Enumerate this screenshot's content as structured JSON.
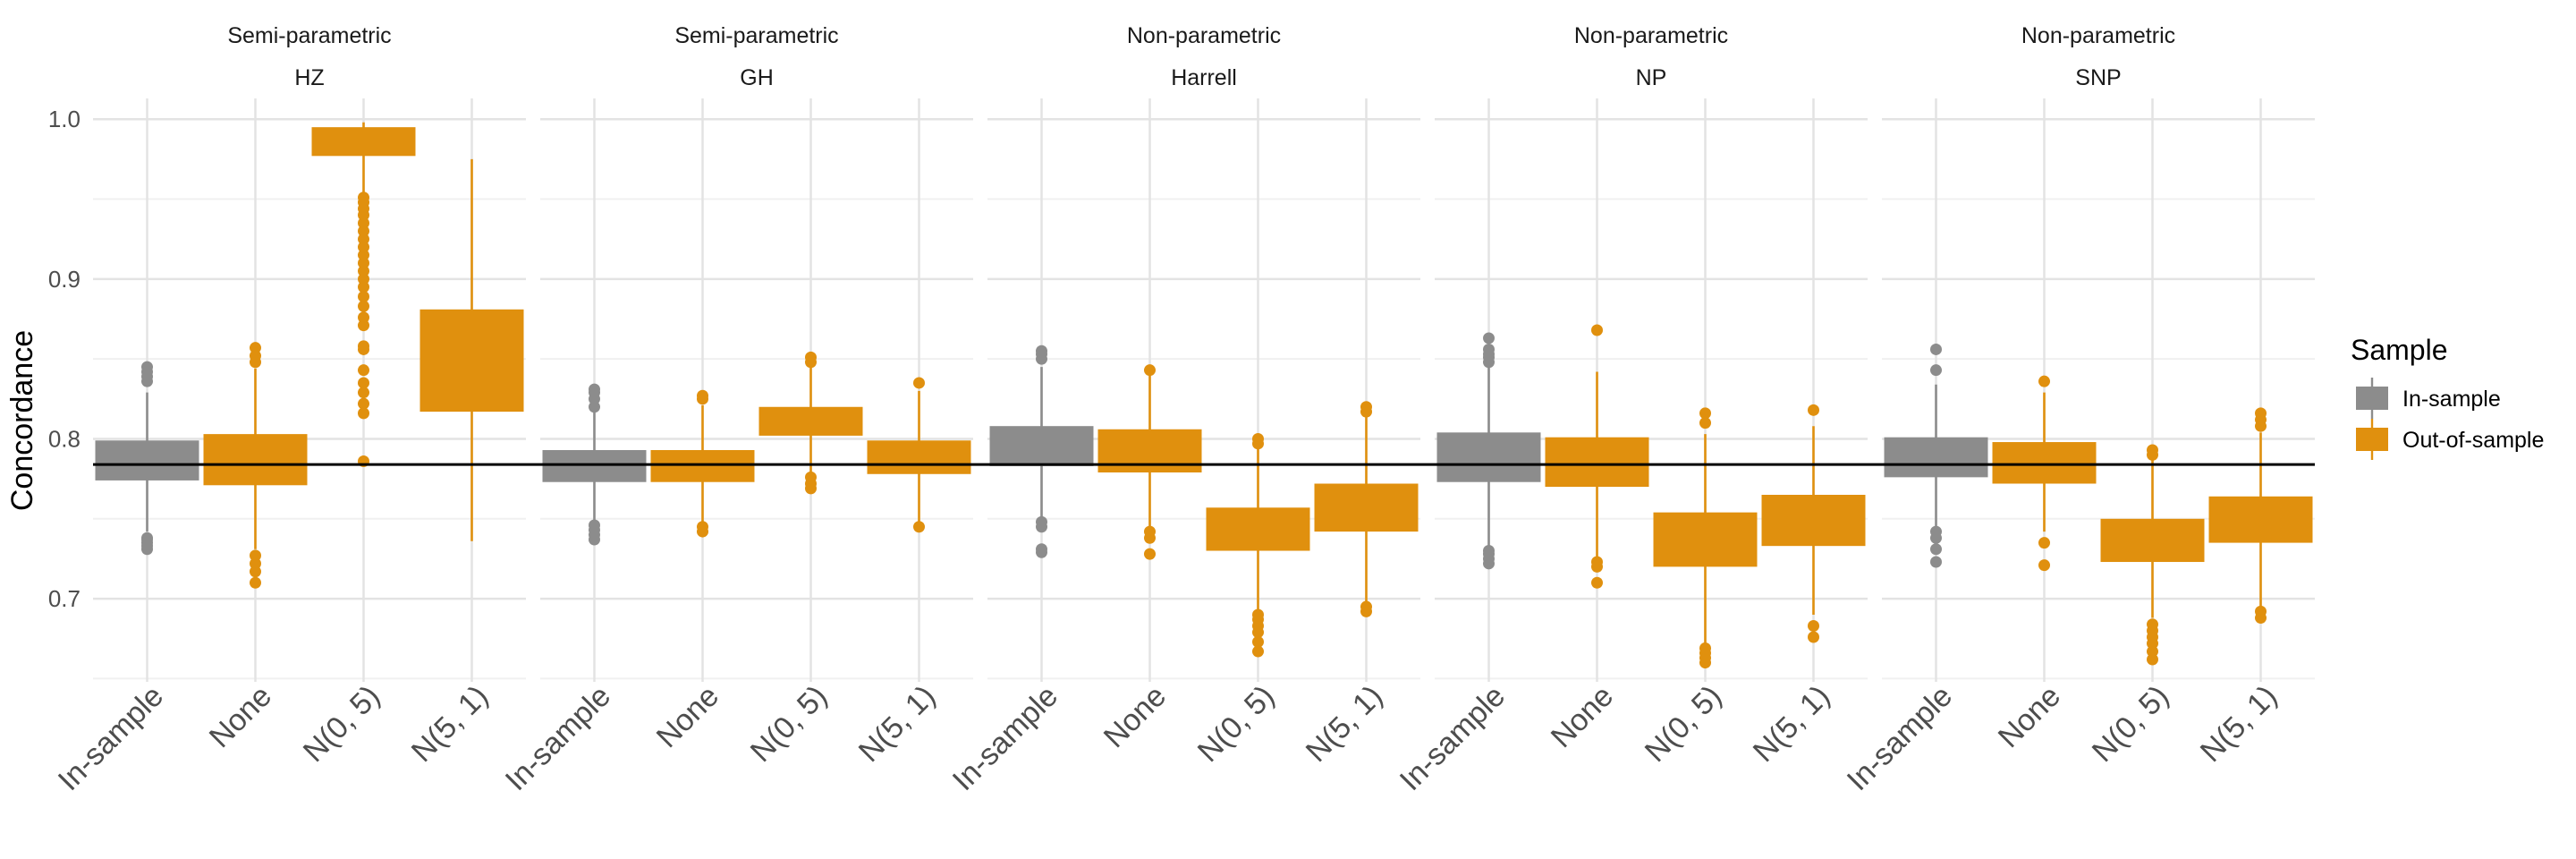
{
  "chart_data": {
    "type": "boxplot",
    "facet_groups": [
      "Semi-parametric",
      "Semi-parametric",
      "Non-parametric",
      "Non-parametric",
      "Non-parametric"
    ],
    "facets": [
      "HZ",
      "GH",
      "Harrell",
      "NP",
      "SNP"
    ],
    "categories": [
      "In-sample",
      "None",
      "N(0, 5)",
      "N(5, 1)"
    ],
    "ylabel": "Concordance",
    "yticks": [
      0.7,
      0.8,
      0.9,
      1.0
    ],
    "ytick_labels": [
      "0.7",
      "0.8",
      "0.9",
      "1.0"
    ],
    "ylim": [
      0.648,
      1.013
    ],
    "reference_line": 0.784,
    "legend": {
      "title": "Sample",
      "position": "right",
      "entries": [
        {
          "label": "In-sample",
          "color": "#8c8c8c"
        },
        {
          "label": "Out-of-sample",
          "color": "#e0900e"
        }
      ]
    },
    "grid": true,
    "panels": [
      {
        "facet": "HZ",
        "boxes": [
          {
            "category": "In-sample",
            "sample": "In-sample",
            "whisker_low": 0.742,
            "q1": 0.774,
            "median": 0.784,
            "q3": 0.799,
            "whisker_high": 0.829,
            "outliers": [
              0.731,
              0.733,
              0.735,
              0.737,
              0.738,
              0.836,
              0.839,
              0.842,
              0.845
            ]
          },
          {
            "category": "None",
            "sample": "Out-of-sample",
            "whisker_low": 0.731,
            "q1": 0.771,
            "median": 0.785,
            "q3": 0.803,
            "whisker_high": 0.844,
            "outliers": [
              0.71,
              0.717,
              0.722,
              0.727,
              0.848,
              0.852,
              0.857
            ]
          },
          {
            "category": "N(0, 5)",
            "sample": "Out-of-sample",
            "whisker_low": 0.952,
            "q1": 0.977,
            "median": 0.984,
            "q3": 0.995,
            "whisker_high": 0.998,
            "outliers": [
              0.786,
              0.816,
              0.822,
              0.829,
              0.835,
              0.843,
              0.856,
              0.858,
              0.871,
              0.876,
              0.883,
              0.889,
              0.895,
              0.9,
              0.905,
              0.91,
              0.915,
              0.92,
              0.925,
              0.93,
              0.935,
              0.94,
              0.944,
              0.948,
              0.951
            ]
          },
          {
            "category": "N(5, 1)",
            "sample": "Out-of-sample",
            "whisker_low": 0.736,
            "q1": 0.817,
            "median": 0.838,
            "q3": 0.881,
            "whisker_high": 0.975,
            "outliers": []
          }
        ]
      },
      {
        "facet": "GH",
        "boxes": [
          {
            "category": "In-sample",
            "sample": "In-sample",
            "whisker_low": 0.748,
            "q1": 0.773,
            "median": 0.783,
            "q3": 0.793,
            "whisker_high": 0.817,
            "outliers": [
              0.737,
              0.74,
              0.743,
              0.746,
              0.82,
              0.825,
              0.829,
              0.831
            ]
          },
          {
            "category": "None",
            "sample": "Out-of-sample",
            "whisker_low": 0.747,
            "q1": 0.773,
            "median": 0.784,
            "q3": 0.793,
            "whisker_high": 0.821,
            "outliers": [
              0.742,
              0.745,
              0.825,
              0.827
            ]
          },
          {
            "category": "N(0, 5)",
            "sample": "Out-of-sample",
            "whisker_low": 0.778,
            "q1": 0.802,
            "median": 0.808,
            "q3": 0.82,
            "whisker_high": 0.845,
            "outliers": [
              0.769,
              0.772,
              0.776,
              0.848,
              0.851
            ]
          },
          {
            "category": "N(5, 1)",
            "sample": "Out-of-sample",
            "whisker_low": 0.745,
            "q1": 0.778,
            "median": 0.783,
            "q3": 0.799,
            "whisker_high": 0.83,
            "outliers": [
              0.745,
              0.835
            ]
          }
        ]
      },
      {
        "facet": "Harrell",
        "boxes": [
          {
            "category": "In-sample",
            "sample": "In-sample",
            "whisker_low": 0.748,
            "q1": 0.783,
            "median": 0.784,
            "q3": 0.808,
            "whisker_high": 0.845,
            "outliers": [
              0.729,
              0.731,
              0.745,
              0.748,
              0.85,
              0.853,
              0.855
            ]
          },
          {
            "category": "None",
            "sample": "Out-of-sample",
            "whisker_low": 0.743,
            "q1": 0.779,
            "median": 0.79,
            "q3": 0.806,
            "whisker_high": 0.843,
            "outliers": [
              0.728,
              0.738,
              0.742,
              0.843
            ]
          },
          {
            "category": "N(0, 5)",
            "sample": "Out-of-sample",
            "whisker_low": 0.692,
            "q1": 0.73,
            "median": 0.741,
            "q3": 0.757,
            "whisker_high": 0.795,
            "outliers": [
              0.667,
              0.673,
              0.679,
              0.683,
              0.687,
              0.69,
              0.797,
              0.8
            ]
          },
          {
            "category": "N(5, 1)",
            "sample": "Out-of-sample",
            "whisker_low": 0.697,
            "q1": 0.742,
            "median": 0.755,
            "q3": 0.772,
            "whisker_high": 0.815,
            "outliers": [
              0.692,
              0.695,
              0.817,
              0.82
            ]
          }
        ]
      },
      {
        "facet": "NP",
        "boxes": [
          {
            "category": "In-sample",
            "sample": "In-sample",
            "whisker_low": 0.73,
            "q1": 0.773,
            "median": 0.786,
            "q3": 0.804,
            "whisker_high": 0.845,
            "outliers": [
              0.722,
              0.725,
              0.728,
              0.73,
              0.848,
              0.851,
              0.853,
              0.856,
              0.863
            ]
          },
          {
            "category": "None",
            "sample": "Out-of-sample",
            "whisker_low": 0.726,
            "q1": 0.77,
            "median": 0.785,
            "q3": 0.801,
            "whisker_high": 0.842,
            "outliers": [
              0.71,
              0.72,
              0.723,
              0.868
            ]
          },
          {
            "category": "N(0, 5)",
            "sample": "Out-of-sample",
            "whisker_low": 0.672,
            "q1": 0.72,
            "median": 0.73,
            "q3": 0.754,
            "whisker_high": 0.803,
            "outliers": [
              0.66,
              0.663,
              0.666,
              0.669,
              0.81,
              0.816
            ]
          },
          {
            "category": "N(5, 1)",
            "sample": "Out-of-sample",
            "whisker_low": 0.69,
            "q1": 0.733,
            "median": 0.747,
            "q3": 0.765,
            "whisker_high": 0.808,
            "outliers": [
              0.676,
              0.683,
              0.818
            ]
          }
        ]
      },
      {
        "facet": "SNP",
        "boxes": [
          {
            "category": "In-sample",
            "sample": "In-sample",
            "whisker_low": 0.745,
            "q1": 0.776,
            "median": 0.784,
            "q3": 0.801,
            "whisker_high": 0.834,
            "outliers": [
              0.723,
              0.731,
              0.738,
              0.742,
              0.843,
              0.856
            ]
          },
          {
            "category": "None",
            "sample": "Out-of-sample",
            "whisker_low": 0.742,
            "q1": 0.772,
            "median": 0.785,
            "q3": 0.798,
            "whisker_high": 0.829,
            "outliers": [
              0.721,
              0.735,
              0.836
            ]
          },
          {
            "category": "N(0, 5)",
            "sample": "Out-of-sample",
            "whisker_low": 0.688,
            "q1": 0.723,
            "median": 0.732,
            "q3": 0.75,
            "whisker_high": 0.787,
            "outliers": [
              0.662,
              0.667,
              0.672,
              0.676,
              0.68,
              0.684,
              0.79,
              0.793
            ]
          },
          {
            "category": "N(5, 1)",
            "sample": "Out-of-sample",
            "whisker_low": 0.695,
            "q1": 0.735,
            "median": 0.745,
            "q3": 0.764,
            "whisker_high": 0.804,
            "outliers": [
              0.688,
              0.692,
              0.808,
              0.812,
              0.816
            ]
          }
        ]
      }
    ]
  }
}
